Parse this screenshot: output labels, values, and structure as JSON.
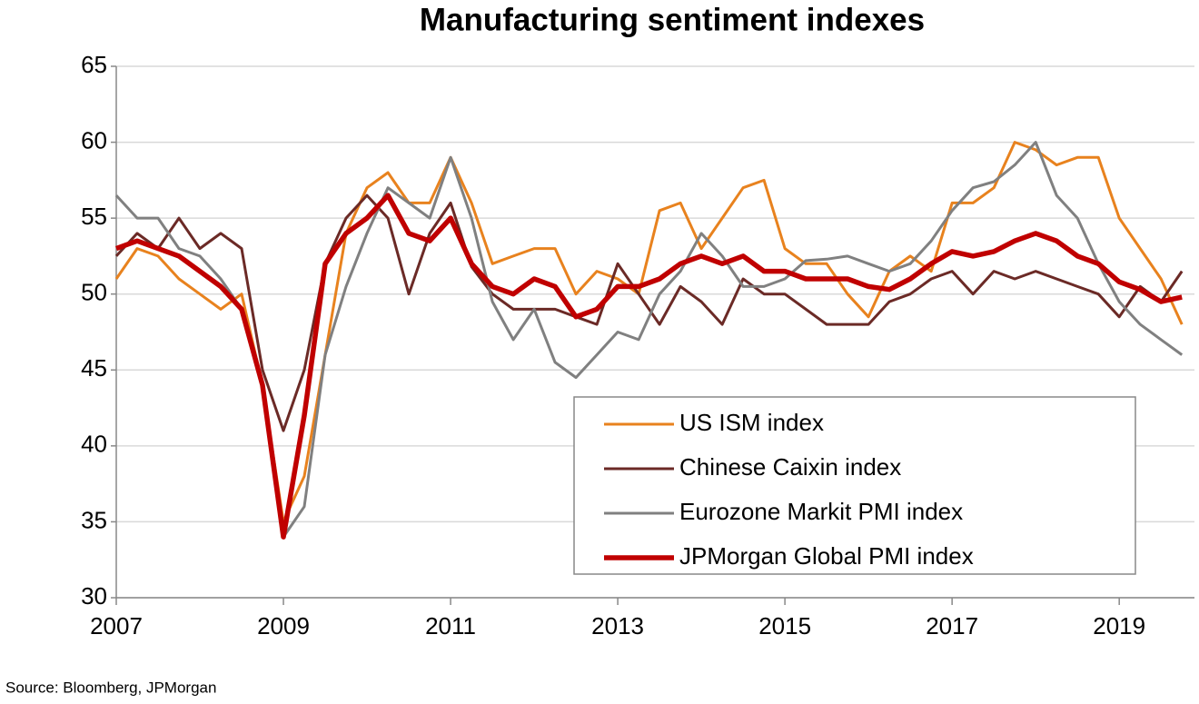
{
  "chart_data": {
    "type": "line",
    "title": "Manufacturing sentiment indexes",
    "source": "Source: Bloomberg, JPMorgan",
    "x": [
      2007,
      2007.25,
      2007.5,
      2007.75,
      2008,
      2008.25,
      2008.5,
      2008.75,
      2009,
      2009.25,
      2009.5,
      2009.75,
      2010,
      2010.25,
      2010.5,
      2010.75,
      2011,
      2011.25,
      2011.5,
      2011.75,
      2012,
      2012.25,
      2012.5,
      2012.75,
      2013,
      2013.25,
      2013.5,
      2013.75,
      2014,
      2014.25,
      2014.5,
      2014.75,
      2015,
      2015.25,
      2015.5,
      2015.75,
      2016,
      2016.25,
      2016.5,
      2016.75,
      2017,
      2017.25,
      2017.5,
      2017.75,
      2018,
      2018.25,
      2018.5,
      2018.75,
      2019,
      2019.25,
      2019.5,
      2019.75
    ],
    "series": [
      {
        "name": "US ISM index",
        "color": "#e8821e",
        "width": 3,
        "values": [
          51,
          53,
          52.5,
          51,
          50,
          49,
          50,
          44,
          35,
          38,
          46,
          54,
          57,
          58,
          56,
          56,
          59,
          56,
          52,
          52.5,
          53,
          53,
          50,
          51.5,
          51,
          50,
          55.5,
          56,
          53,
          55,
          57,
          57.5,
          53,
          52,
          52,
          50,
          48.5,
          51.5,
          52.5,
          51.5,
          56,
          56,
          57,
          60,
          59.5,
          58.5,
          59,
          59,
          55,
          53,
          51,
          48
        ]
      },
      {
        "name": "Chinese Caixin index",
        "color": "#6b2a26",
        "width": 3,
        "values": [
          52.5,
          54,
          53,
          55,
          53,
          54,
          53,
          45,
          41,
          45,
          52,
          55,
          56.5,
          55,
          50,
          54,
          56,
          51.8,
          50,
          49,
          49,
          49,
          48.5,
          48,
          52,
          50,
          48,
          50.5,
          49.5,
          48,
          51,
          50,
          50,
          49,
          48,
          48,
          48,
          49.5,
          50,
          51,
          51.5,
          50,
          51.5,
          51,
          51.5,
          51,
          50.5,
          50,
          48.5,
          50.5,
          49.5,
          51.5
        ]
      },
      {
        "name": "Eurozone Markit PMI index",
        "color": "#808080",
        "width": 3,
        "values": [
          56.5,
          55,
          55,
          53,
          52.5,
          51,
          49,
          44,
          34,
          36,
          46,
          50.5,
          54,
          57,
          56,
          55,
          59,
          55,
          49.5,
          47,
          49,
          45.5,
          44.5,
          46,
          47.5,
          47,
          50,
          51.5,
          54,
          52.5,
          50.5,
          50.5,
          51,
          52.2,
          52.3,
          52.5,
          52,
          51.5,
          52,
          53.5,
          55.5,
          57,
          57.4,
          58.5,
          60,
          56.5,
          55,
          52,
          49.5,
          48,
          47,
          46
        ]
      },
      {
        "name": "JPMorgan Global PMI index",
        "color": "#c00000",
        "width": 5.5,
        "values": [
          53,
          53.5,
          53,
          52.5,
          51.5,
          50.5,
          49,
          44,
          34,
          42,
          52,
          54,
          55,
          56.5,
          54,
          53.5,
          55,
          52,
          50.5,
          50,
          51,
          50.5,
          48.5,
          49,
          50.5,
          50.5,
          51,
          52,
          52.5,
          52,
          52.5,
          51.5,
          51.5,
          51,
          51,
          51,
          50.5,
          50.3,
          51,
          52,
          52.8,
          52.5,
          52.8,
          53.5,
          54,
          53.5,
          52.5,
          52,
          50.8,
          50.3,
          49.5,
          49.8
        ]
      }
    ],
    "xlim": [
      2007,
      2019.9
    ],
    "xticks": [
      2007,
      2009,
      2011,
      2013,
      2015,
      2017,
      2019
    ],
    "ylim": [
      30,
      65
    ],
    "yticks": [
      30,
      35,
      40,
      45,
      50,
      55,
      60,
      65
    ],
    "grid": true,
    "legend": "lower right"
  }
}
